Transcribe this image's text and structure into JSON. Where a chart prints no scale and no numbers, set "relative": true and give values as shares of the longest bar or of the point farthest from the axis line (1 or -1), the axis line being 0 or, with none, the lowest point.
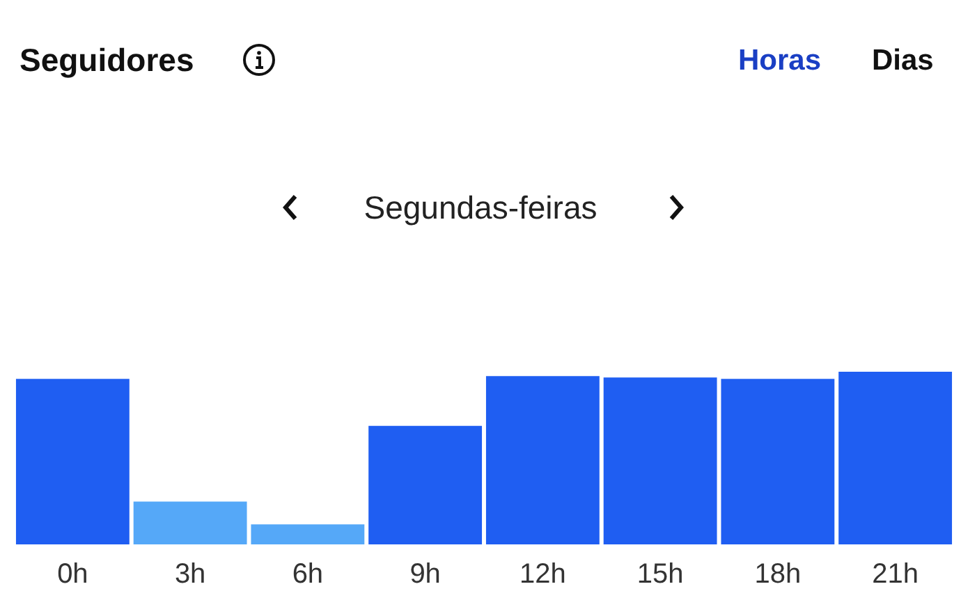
{
  "chart_data": {
    "type": "bar",
    "title": "Seguidores",
    "subtitle": "Segundas-feiras",
    "annotations": [
      "Horas",
      "Dias"
    ],
    "categories": [
      "0h",
      "3h",
      "6h",
      "9h",
      "12h",
      "15h",
      "18h",
      "21h"
    ],
    "values": [
      0.959,
      0.248,
      0.116,
      0.686,
      0.975,
      0.967,
      0.959,
      1
    ],
    "colors": [
      "#1f5ef2",
      "#55a8f8",
      "#55a8f8",
      "#1f5ef2",
      "#1f5ef2",
      "#1f5ef2",
      "#1f5ef2",
      "#1f5ef2"
    ],
    "relative": true,
    "grid": false,
    "legend": false
  }
}
